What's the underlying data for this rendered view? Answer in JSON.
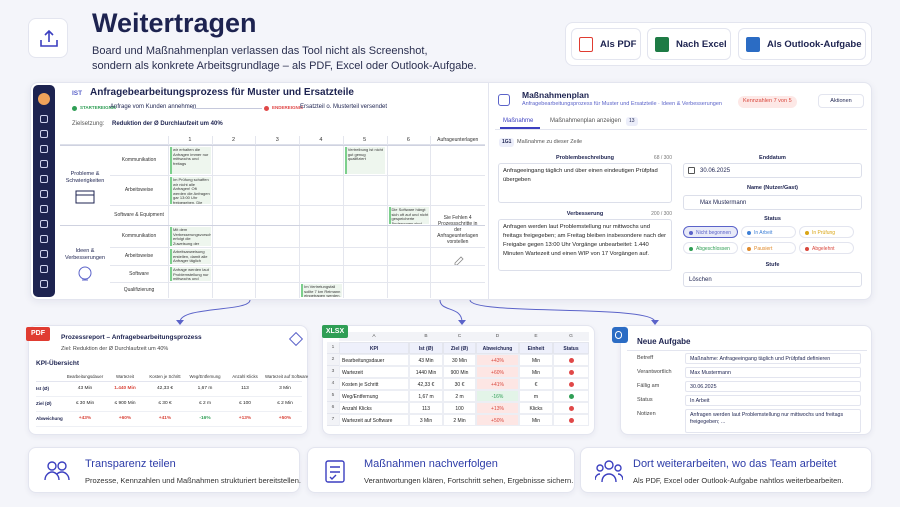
{
  "header": {
    "title": "Weitertragen",
    "description": [
      "Board und Maßnahmenplan verlassen das Tool nicht als Screenshot,",
      "sondern als konkrete Arbeitsgrundlage – als PDF, Excel oder Outlook-Aufgabe."
    ]
  },
  "export_buttons": [
    "Als PDF",
    "Nach Excel",
    "Als Outlook-Aufgabe"
  ],
  "board": {
    "tag": "IST",
    "title": "Anfragebearbeitungsprozess für Muster und Ersatzteile",
    "start_label": "STARTEREIGNIS",
    "start": "Anfrage vom Kunden annehmen",
    "end_label": "ENDEREIGNIS",
    "end": "Ersatzteil o. Musterteil versendet",
    "goal_label": "Zielsetzung:",
    "goal": "Reduktion der Ø Durchlaufzeit um 40%",
    "columns": [
      "1",
      "2",
      "3",
      "4",
      "5",
      "6"
    ],
    "side_column": "Aufrageunterlagen",
    "side_note": "Sie Fehlen 4 Prozessschritte in der Anfrageunterlagen vorstellen",
    "groups": [
      {
        "label": "Probleme & Schwierigkeiten",
        "rows": [
          {
            "label": "Kommunikation",
            "cells": [
              "wir erhalten die Anfragen immer nur mittwochs und freitags",
              null,
              null,
              null,
              "Vertreibung ist nicht gut genug qualifiziert",
              null
            ]
          },
          {
            "label": "Arbeitsweise",
            "cells": [
              "Im Prüfung schaffen wir nicht alle Anfragen! Oft werden die Anfragen gar 13:00 Uhr freigegeben. Die Zeit reicht nicht aus um alles zu bearbeiten!",
              null,
              null,
              null,
              null,
              null
            ]
          },
          {
            "label": "Software & Equipment",
            "cells": [
              null,
              null,
              null,
              null,
              null,
              "Die Software hängt sich oft auf und nicht gespeicherte Änderungen sind dann weg"
            ]
          }
        ]
      },
      {
        "label": "Ideen & Verbesserungen",
        "rows": [
          {
            "label": "Kommunikation",
            "cells": [
              "Mit dem Verbesserungsvorschlag erfolgt die Zuweisung der Anfragen täglich. Damit kein Rückstau entsteht",
              null,
              null,
              null,
              null,
              null
            ]
          },
          {
            "label": "Arbeitsweise",
            "cells": [
              "Arbeitsanweisung erstellen, damit alle Anfrager täglich bearbeitet werden können",
              null,
              null,
              null,
              null,
              null
            ]
          },
          {
            "label": "Software",
            "cells": [
              "Anfrage werden laut Problemstellung nur mittwochs und freitags freigegeben; am Freitag bleiben insbesondere nach der Freigabe gegen 13:00 Uhr Vorgänge unbearbeitet: 1.440 Minuten",
              null,
              null,
              null,
              null,
              null
            ]
          },
          {
            "label": "Qualifizierung",
            "cells": [
              null,
              null,
              null,
              "Im Vertretungsfall sollte 7 km Reimann eingetragen werden, dass muss Sie qualifiziert werden",
              null,
              null
            ]
          }
        ]
      }
    ]
  },
  "plan": {
    "title": "Maßnahmenplan",
    "subtitle": "Anfragebearbeitungsprozess für Muster und Ersatzteile · Ideen & Verbesserungen",
    "badge": "Kennzahlen 7 von 5",
    "actions": "Aktionen",
    "tabs": [
      "Maßnahme",
      "Maßnahmenplan anzeigen"
    ],
    "tab_count": "13",
    "row_id": "1G1",
    "row_hint": "Maßnahme zu dieser Zeile",
    "problem_label": "Problembeschreibung",
    "problem_count": "68 / 300",
    "problem": "Anfrageeingang täglich und über einen eindeutigen Prüfpfad übergeben",
    "improvement_label": "Verbesserung",
    "improvement_count": "200 / 300",
    "improvement": "Anfragen werden laut Problemstellung nur mittwochs und freitags freigegeben; am Freitag bleiben insbesondere nach der Freigabe gegen 13:00 Uhr Vorgänge unbearbeitet: 1.440 Minuten Wartezeit und einen WIP von 17 Vorgängen auf.",
    "date_label": "Enddatum",
    "date": "30.06.2025",
    "name_label": "Name (Nutzer/Gast)",
    "name": "Max Mustermann",
    "status_label": "Status",
    "statuses": [
      {
        "label": "Nicht begonnen",
        "color": "#5b63c9"
      },
      {
        "label": "In Arbeit",
        "color": "#3d7fd6"
      },
      {
        "label": "In Prüfung",
        "color": "#d9a515"
      },
      {
        "label": "Abgeschlossen",
        "color": "#2f9e55"
      },
      {
        "label": "Pausiert",
        "color": "#e08a2c"
      },
      {
        "label": "Abgelehnt",
        "color": "#d9473d"
      }
    ],
    "level_label": "Stufe",
    "level": "Löschen"
  },
  "pdf": {
    "badge": "PDF",
    "title": "Prozessreport – Anfragebearbeitungsprozess",
    "subtitle": "Ziel: Reduktion der Ø Durchlaufzeit um 40%",
    "section": "KPI-Übersicht",
    "columns": [
      "Bearbeitungsdauer",
      "Wartezeit",
      "Kosten je Schritt",
      "Weg/Entfernung",
      "Anzahl Klicks",
      "Wartezeit auf Software"
    ],
    "rows": [
      {
        "label": "Ist (Ø)",
        "values": [
          "43 Min",
          "1.440 Min",
          "42,33 €",
          "1,67 m",
          "113",
          "3 Min"
        ]
      },
      {
        "label": "Ziel (Ø)",
        "values": [
          "≤ 30 Min",
          "≤ 900 Min",
          "≤ 30 €",
          "≤ 2 m",
          "≤ 100",
          "≤ 2 Min"
        ]
      },
      {
        "label": "Abweichung",
        "values": [
          "+43%",
          "+60%",
          "+41%",
          "-16%",
          "+13%",
          "+50%"
        ]
      }
    ]
  },
  "xlsx": {
    "badge": "XLSX",
    "letters": [
      "A",
      "B",
      "C",
      "D",
      "E",
      "G"
    ],
    "row_numbers": [
      "1",
      "2",
      "3",
      "4",
      "5",
      "6",
      "7"
    ],
    "header": [
      "KPI",
      "Ist (Ø)",
      "Ziel (Ø)",
      "Abweichung",
      "Einheit",
      "Status"
    ],
    "rows": [
      {
        "cells": [
          "Bearbeitungsdauer",
          "43 Min",
          "30 Min",
          "+43%",
          "Min"
        ],
        "status": "#e04848"
      },
      {
        "cells": [
          "Wartezeit",
          "1440 Min",
          "900 Min",
          "+60%",
          "Min"
        ],
        "status": "#e04848"
      },
      {
        "cells": [
          "Kosten je Schritt",
          "42,33 €",
          "30 €",
          "+41%",
          "€"
        ],
        "status": "#e04848"
      },
      {
        "cells": [
          "Weg/Entfernung",
          "1,67 m",
          "2 m",
          "-16%",
          "m"
        ],
        "status": "#2f9e55"
      },
      {
        "cells": [
          "Anzahl Klicks",
          "113",
          "100",
          "+13%",
          "Klicks"
        ],
        "status": "#e04848"
      },
      {
        "cells": [
          "Wartezeit auf Software",
          "3 Min",
          "2 Min",
          "+50%",
          "Min"
        ],
        "status": "#e04848"
      }
    ]
  },
  "outlook": {
    "title": "Neue Aufgabe",
    "fields": [
      {
        "label": "Betreff",
        "value": "Maßnahme: Anfrageeingang täglich und Prüfpfad definieren"
      },
      {
        "label": "Verantwortlich",
        "value": "Max Mustermann"
      },
      {
        "label": "Fällig am",
        "value": "30.06.2025"
      },
      {
        "label": "Status",
        "value": "In Arbeit"
      },
      {
        "label": "Notizen",
        "value": "Anfragen werden laut Problemstellung nur mittwochs und freitags freigegeben; ..."
      }
    ]
  },
  "features": [
    {
      "title": "Transparenz teilen",
      "text": "Prozesse, Kennzahlen und Maßnahmen strukturiert bereitstellen."
    },
    {
      "title": "Maßnahmen nachverfolgen",
      "text": "Verantwortungen klären, Fortschritt sehen, Ergebnisse sichern."
    },
    {
      "title": "Dort weiterarbeiten, wo das Team arbeitet",
      "text": "Als PDF, Excel oder Outlook-Aufgabe nahtlos weiterbearbeiten."
    }
  ]
}
